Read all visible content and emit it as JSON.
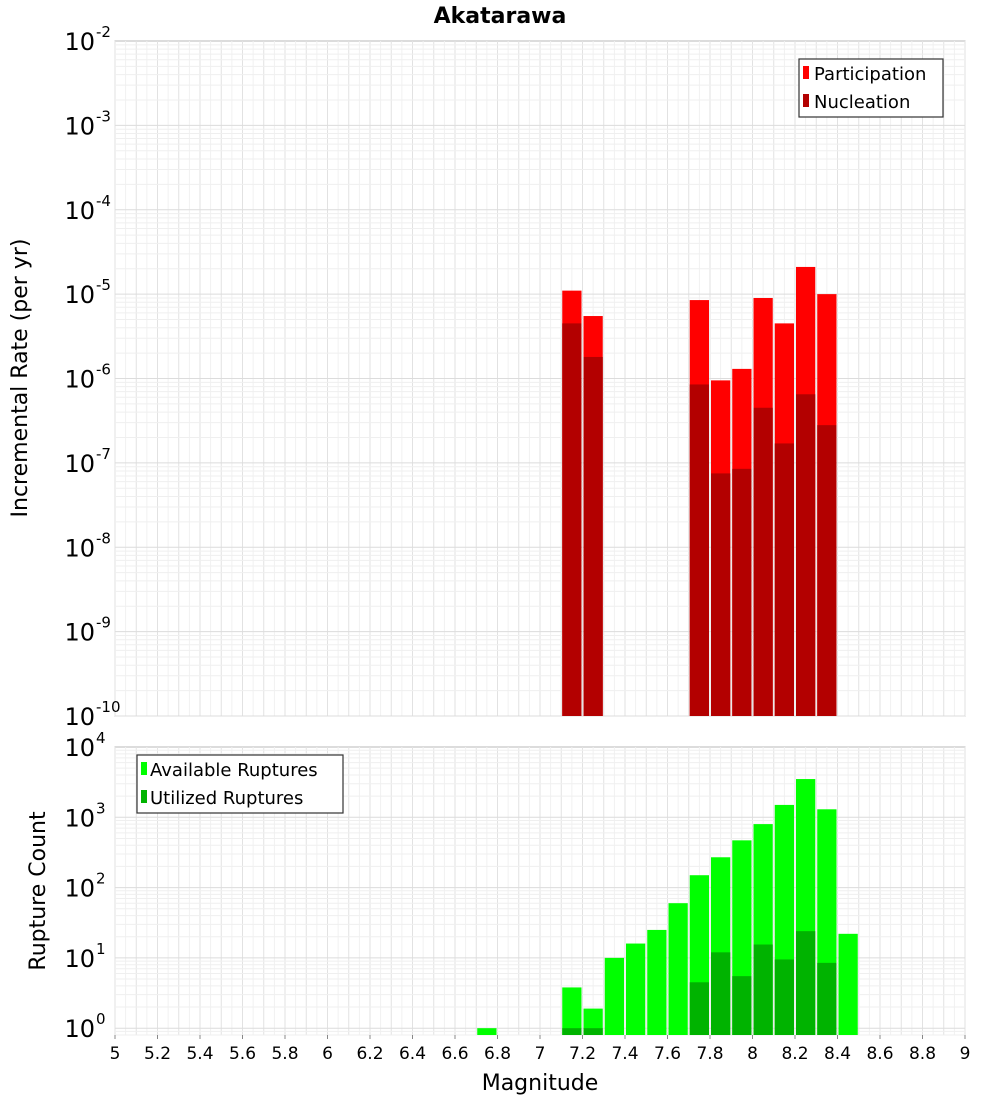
{
  "chart_data": [
    {
      "type": "bar",
      "title": "Akatarawa",
      "ylabel": "Incremental Rate (per yr)",
      "xlabel": "",
      "yscale": "log",
      "ylim": [
        1e-10,
        0.01
      ],
      "xlim": [
        5,
        9
      ],
      "ytick_bases": [
        "10",
        "10",
        "10",
        "10",
        "10",
        "10",
        "10",
        "10",
        "10"
      ],
      "ytick_exps": [
        "-10",
        "-9",
        "-8",
        "-7",
        "-6",
        "-5",
        "-4",
        "-3",
        "-2"
      ],
      "grid": true,
      "legend_position": "top-right",
      "bar_width": 0.1,
      "series": [
        {
          "name": "Participation",
          "color": "#ff0000",
          "x": [
            7.15,
            7.25,
            7.75,
            7.85,
            7.95,
            8.05,
            8.15,
            8.25,
            8.35
          ],
          "values": [
            1.1e-05,
            5.5e-06,
            8.5e-06,
            9.5e-07,
            1.3e-06,
            9e-06,
            4.5e-06,
            2.1e-05,
            1e-05
          ]
        },
        {
          "name": "Nucleation",
          "color": "#b30000",
          "x": [
            7.15,
            7.25,
            7.75,
            7.85,
            7.95,
            8.05,
            8.15,
            8.25,
            8.35
          ],
          "values": [
            4.5e-06,
            1.8e-06,
            8.5e-07,
            7.5e-08,
            8.5e-08,
            4.5e-07,
            1.7e-07,
            6.5e-07,
            2.8e-07
          ]
        }
      ]
    },
    {
      "type": "bar",
      "title": "",
      "ylabel": "Rupture Count",
      "xlabel": "Magnitude",
      "yscale": "log",
      "ylim": [
        0.8,
        10000
      ],
      "xlim": [
        5,
        9
      ],
      "xticks": [
        "5",
        "5.2",
        "5.4",
        "5.6",
        "5.8",
        "6",
        "6.2",
        "6.4",
        "6.6",
        "6.8",
        "7",
        "7.2",
        "7.4",
        "7.6",
        "7.8",
        "8",
        "8.2",
        "8.4",
        "8.6",
        "8.8",
        "9"
      ],
      "ytick_bases": [
        "10",
        "10",
        "10",
        "10",
        "10"
      ],
      "ytick_exps": [
        "0",
        "1",
        "2",
        "3",
        "4"
      ],
      "grid": true,
      "legend_position": "top-left",
      "bar_width": 0.1,
      "series": [
        {
          "name": "Available Ruptures",
          "color": "#00ff00",
          "x": [
            6.75,
            7.15,
            7.25,
            7.35,
            7.45,
            7.55,
            7.65,
            7.75,
            7.85,
            7.95,
            8.05,
            8.15,
            8.25,
            8.35,
            8.45
          ],
          "values": [
            1,
            3.8,
            1.9,
            10,
            16,
            25,
            60,
            150,
            270,
            470,
            800,
            1500,
            3500,
            1300,
            22
          ]
        },
        {
          "name": "Utilized Ruptures",
          "color": "#00b300",
          "x": [
            7.15,
            7.25,
            7.75,
            7.85,
            7.95,
            8.05,
            8.15,
            8.25,
            8.35
          ],
          "values": [
            1,
            1,
            4.5,
            12,
            5.5,
            15.5,
            9.5,
            24,
            8.5
          ]
        }
      ]
    }
  ]
}
